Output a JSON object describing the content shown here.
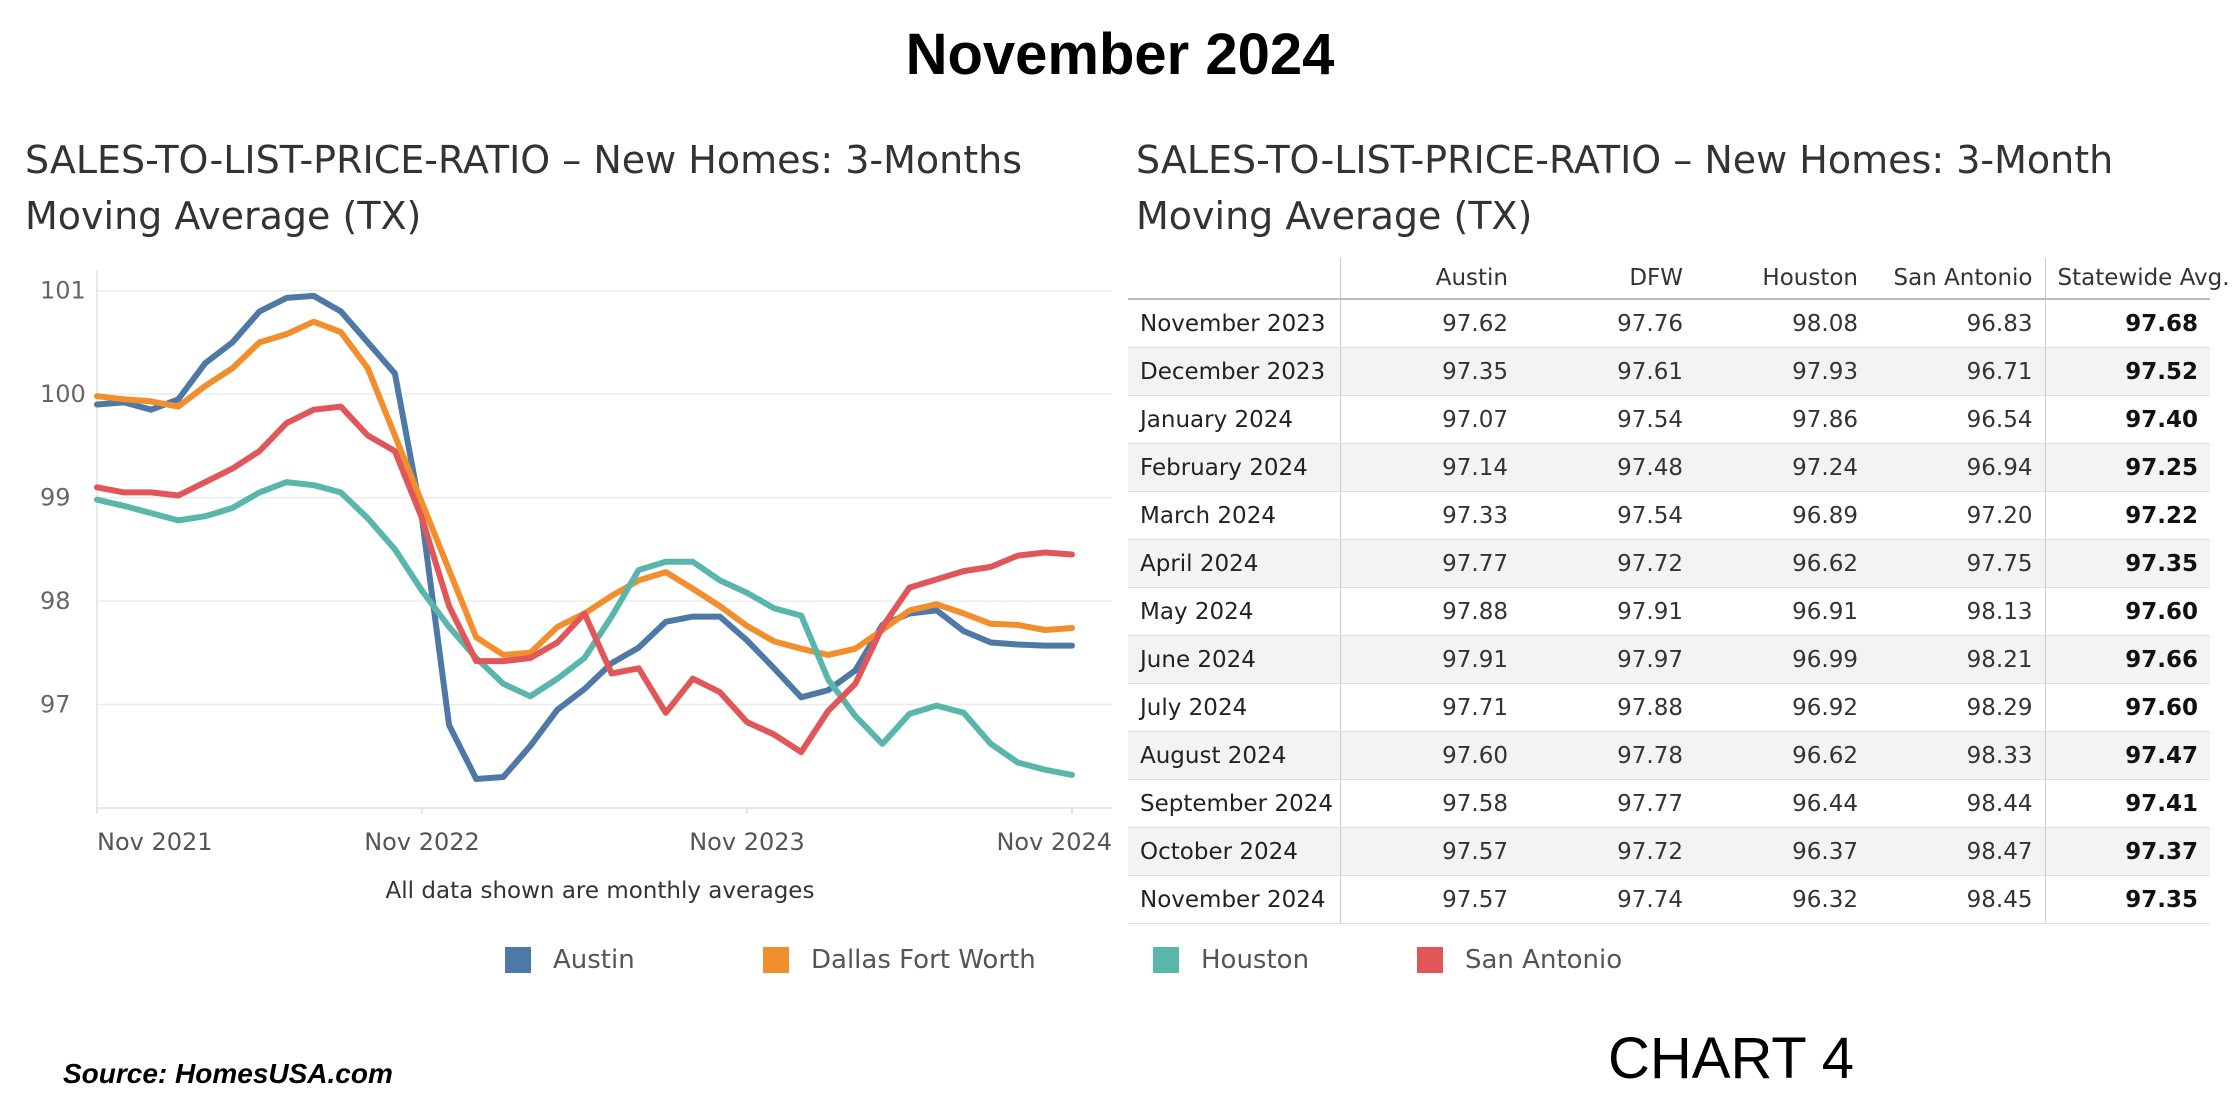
{
  "header": {
    "title": "November 2024"
  },
  "left_panel": {
    "title": "SALES-TO-LIST-PRICE-RATIO – New Homes: 3-Months Moving Average (TX)"
  },
  "right_panel": {
    "title": "SALES-TO-LIST-PRICE-RATIO – New Homes:  3-Month Moving Average (TX)"
  },
  "chart_note": "All data shown are monthly averages",
  "footer": {
    "source": "Source:  HomesUSA.com",
    "chart_label": "CHART 4"
  },
  "legend": [
    {
      "label": "Austin",
      "color": "#4e79a7"
    },
    {
      "label": "Dallas Fort Worth",
      "color": "#f28e2b"
    },
    {
      "label": "Houston",
      "color": "#59b6ab"
    },
    {
      "label": "San Antonio",
      "color": "#e15759"
    }
  ],
  "chart_data": [
    {
      "type": "line",
      "title": "SALES-TO-LIST-PRICE-RATIO – New Homes: 3-Months Moving Average (TX)",
      "xlabel": "",
      "ylabel": "",
      "x": [
        "2021-11",
        "2021-12",
        "2022-01",
        "2022-02",
        "2022-03",
        "2022-04",
        "2022-05",
        "2022-06",
        "2022-07",
        "2022-08",
        "2022-09",
        "2022-10",
        "2022-11",
        "2022-12",
        "2023-01",
        "2023-02",
        "2023-03",
        "2023-04",
        "2023-05",
        "2023-06",
        "2023-07",
        "2023-08",
        "2023-09",
        "2023-10",
        "2023-11",
        "2023-12",
        "2024-01",
        "2024-02",
        "2024-03",
        "2024-04",
        "2024-05",
        "2024-06",
        "2024-07",
        "2024-08",
        "2024-09",
        "2024-10",
        "2024-11"
      ],
      "x_tick_labels": [
        "Nov 2021",
        "Nov 2022",
        "Nov 2023",
        "Nov 2024"
      ],
      "y_ticks": [
        97,
        98,
        99,
        100,
        101
      ],
      "ylim": [
        96.0,
        101.2
      ],
      "grid": true,
      "series": [
        {
          "name": "Austin",
          "color": "#4e79a7",
          "values": [
            99.9,
            99.92,
            99.85,
            99.95,
            100.3,
            100.5,
            100.8,
            100.93,
            100.95,
            100.8,
            100.5,
            100.2,
            98.8,
            96.8,
            96.28,
            96.3,
            96.6,
            96.95,
            97.15,
            97.4,
            97.55,
            97.8,
            97.85,
            97.85,
            97.62,
            97.35,
            97.07,
            97.14,
            97.33,
            97.77,
            97.88,
            97.91,
            97.71,
            97.6,
            97.58,
            97.57,
            97.57
          ]
        },
        {
          "name": "Dallas Fort Worth",
          "color": "#f28e2b",
          "values": [
            99.98,
            99.95,
            99.93,
            99.88,
            100.08,
            100.25,
            100.5,
            100.58,
            100.7,
            100.6,
            100.25,
            99.6,
            98.95,
            98.3,
            97.65,
            97.48,
            97.5,
            97.75,
            97.88,
            98.05,
            98.2,
            98.28,
            98.12,
            97.95,
            97.76,
            97.61,
            97.54,
            97.48,
            97.54,
            97.72,
            97.91,
            97.97,
            97.88,
            97.78,
            97.77,
            97.72,
            97.74
          ]
        },
        {
          "name": "Houston",
          "color": "#59b6ab",
          "values": [
            98.98,
            98.92,
            98.85,
            98.78,
            98.82,
            98.9,
            99.05,
            99.15,
            99.12,
            99.05,
            98.8,
            98.5,
            98.1,
            97.75,
            97.45,
            97.2,
            97.08,
            97.25,
            97.45,
            97.85,
            98.3,
            98.38,
            98.38,
            98.2,
            98.08,
            97.93,
            97.86,
            97.24,
            96.89,
            96.62,
            96.91,
            96.99,
            96.92,
            96.62,
            96.44,
            96.37,
            96.32
          ]
        },
        {
          "name": "San Antonio",
          "color": "#e15759",
          "values": [
            99.1,
            99.05,
            99.05,
            99.02,
            99.15,
            99.28,
            99.45,
            99.72,
            99.85,
            99.88,
            99.6,
            99.45,
            98.8,
            97.95,
            97.42,
            97.42,
            97.45,
            97.6,
            97.88,
            97.3,
            97.35,
            96.92,
            97.25,
            97.12,
            96.83,
            96.71,
            96.54,
            96.94,
            97.2,
            97.75,
            98.13,
            98.21,
            98.29,
            98.33,
            98.44,
            98.47,
            98.45
          ]
        }
      ]
    },
    {
      "type": "table",
      "title": "SALES-TO-LIST-PRICE-RATIO – New Homes:  3-Month Moving Average (TX)",
      "columns": [
        "",
        "Austin",
        "DFW",
        "Houston",
        "San Antonio",
        "Statewide Avg."
      ],
      "rows": [
        [
          "November 2023",
          "97.62",
          "97.76",
          "98.08",
          "96.83",
          "97.68"
        ],
        [
          "December 2023",
          "97.35",
          "97.61",
          "97.93",
          "96.71",
          "97.52"
        ],
        [
          "January 2024",
          "97.07",
          "97.54",
          "97.86",
          "96.54",
          "97.40"
        ],
        [
          "February 2024",
          "97.14",
          "97.48",
          "97.24",
          "96.94",
          "97.25"
        ],
        [
          "March 2024",
          "97.33",
          "97.54",
          "96.89",
          "97.20",
          "97.22"
        ],
        [
          "April 2024",
          "97.77",
          "97.72",
          "96.62",
          "97.75",
          "97.35"
        ],
        [
          "May 2024",
          "97.88",
          "97.91",
          "96.91",
          "98.13",
          "97.60"
        ],
        [
          "June 2024",
          "97.91",
          "97.97",
          "96.99",
          "98.21",
          "97.66"
        ],
        [
          "July 2024",
          "97.71",
          "97.88",
          "96.92",
          "98.29",
          "97.60"
        ],
        [
          "August 2024",
          "97.60",
          "97.78",
          "96.62",
          "98.33",
          "97.47"
        ],
        [
          "September 2024",
          "97.58",
          "97.77",
          "96.44",
          "98.44",
          "97.41"
        ],
        [
          "October 2024",
          "97.57",
          "97.72",
          "96.37",
          "98.47",
          "97.37"
        ],
        [
          "November 2024",
          "97.57",
          "97.74",
          "96.32",
          "98.45",
          "97.35"
        ]
      ]
    }
  ]
}
